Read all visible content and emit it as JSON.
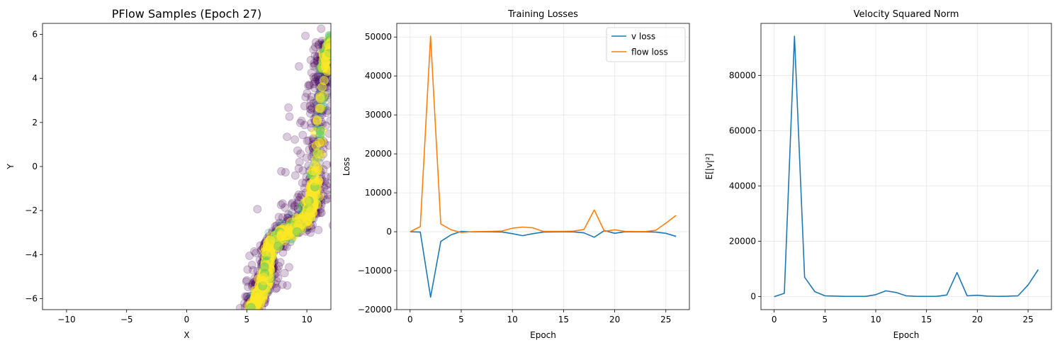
{
  "chart_data": [
    {
      "type": "scatter",
      "title": "PFlow Samples (Epoch 27)",
      "xlabel": "X",
      "ylabel": "Y",
      "xlim": [
        -12,
        12
      ],
      "ylim": [
        -6.5,
        6.5
      ],
      "xticks": [
        -10,
        -5,
        0,
        5,
        10
      ],
      "yticks": [
        -6,
        -4,
        -2,
        0,
        2,
        4,
        6
      ],
      "grid": false,
      "colormap": [
        "#440154",
        "#3b528b",
        "#21918c",
        "#5ec962",
        "#fde725"
      ],
      "marker_alpha": 0.2,
      "description_of_points": "Curved band of samples; yellow dense core along curve, purple spread around it",
      "core_curve": [
        [
          5.3,
          -6.5
        ],
        [
          6.1,
          -5.8
        ],
        [
          6.6,
          -5.0
        ],
        [
          6.7,
          -4.3
        ],
        [
          7.0,
          -3.6
        ],
        [
          7.8,
          -3.1
        ],
        [
          9.0,
          -2.8
        ],
        [
          10.0,
          -2.3
        ],
        [
          10.5,
          -1.5
        ],
        [
          10.8,
          0.0
        ],
        [
          11.0,
          2.0
        ],
        [
          11.2,
          3.5
        ],
        [
          11.4,
          4.5
        ],
        [
          11.8,
          5.3
        ],
        [
          12.0,
          5.8
        ]
      ]
    },
    {
      "type": "line",
      "title": "Training Losses",
      "xlabel": "Epoch",
      "ylabel": "Loss",
      "xlim": [
        -1.3,
        27.3
      ],
      "ylim": [
        -20000,
        53500
      ],
      "xticks": [
        0,
        5,
        10,
        15,
        20,
        25
      ],
      "yticks": [
        -20000,
        -10000,
        0,
        10000,
        20000,
        30000,
        40000,
        50000
      ],
      "grid": true,
      "legend_position": "upper right",
      "x": [
        0,
        1,
        2,
        3,
        4,
        5,
        6,
        7,
        8,
        9,
        10,
        11,
        12,
        13,
        14,
        15,
        16,
        17,
        18,
        19,
        20,
        21,
        22,
        23,
        24,
        25,
        26
      ],
      "series": [
        {
          "name": "v loss",
          "color": "#1f77b4",
          "values": [
            0,
            -100,
            -16800,
            -2500,
            -800,
            100,
            -50,
            -20,
            -30,
            -60,
            -500,
            -1000,
            -500,
            -100,
            -50,
            -30,
            -40,
            -300,
            -1400,
            300,
            -400,
            0,
            -50,
            -30,
            -100,
            -400,
            -1200
          ]
        },
        {
          "name": "flow loss",
          "color": "#ff7f0e",
          "values": [
            0,
            1300,
            50200,
            2000,
            500,
            -200,
            0,
            50,
            100,
            200,
            900,
            1200,
            1000,
            100,
            100,
            100,
            150,
            600,
            5600,
            100,
            500,
            100,
            50,
            50,
            350,
            2200,
            4200
          ]
        }
      ]
    },
    {
      "type": "line",
      "title": "Velocity Squared Norm",
      "xlabel": "Epoch",
      "ylabel": "E[|v|²]",
      "xlim": [
        -1.3,
        27.3
      ],
      "ylim": [
        -4700,
        98800
      ],
      "xticks": [
        0,
        5,
        10,
        15,
        20,
        25
      ],
      "yticks": [
        0,
        20000,
        40000,
        60000,
        80000
      ],
      "grid": true,
      "x": [
        0,
        1,
        2,
        3,
        4,
        5,
        6,
        7,
        8,
        9,
        10,
        11,
        12,
        13,
        14,
        15,
        16,
        17,
        18,
        19,
        20,
        21,
        22,
        23,
        24,
        25,
        26
      ],
      "series": [
        {
          "name": "",
          "color": "#1f77b4",
          "values": [
            0,
            1200,
            94200,
            7000,
            1800,
            300,
            200,
            100,
            100,
            100,
            700,
            2100,
            1500,
            300,
            100,
            100,
            100,
            600,
            8700,
            300,
            500,
            200,
            100,
            150,
            300,
            4200,
            9800
          ]
        }
      ]
    }
  ]
}
